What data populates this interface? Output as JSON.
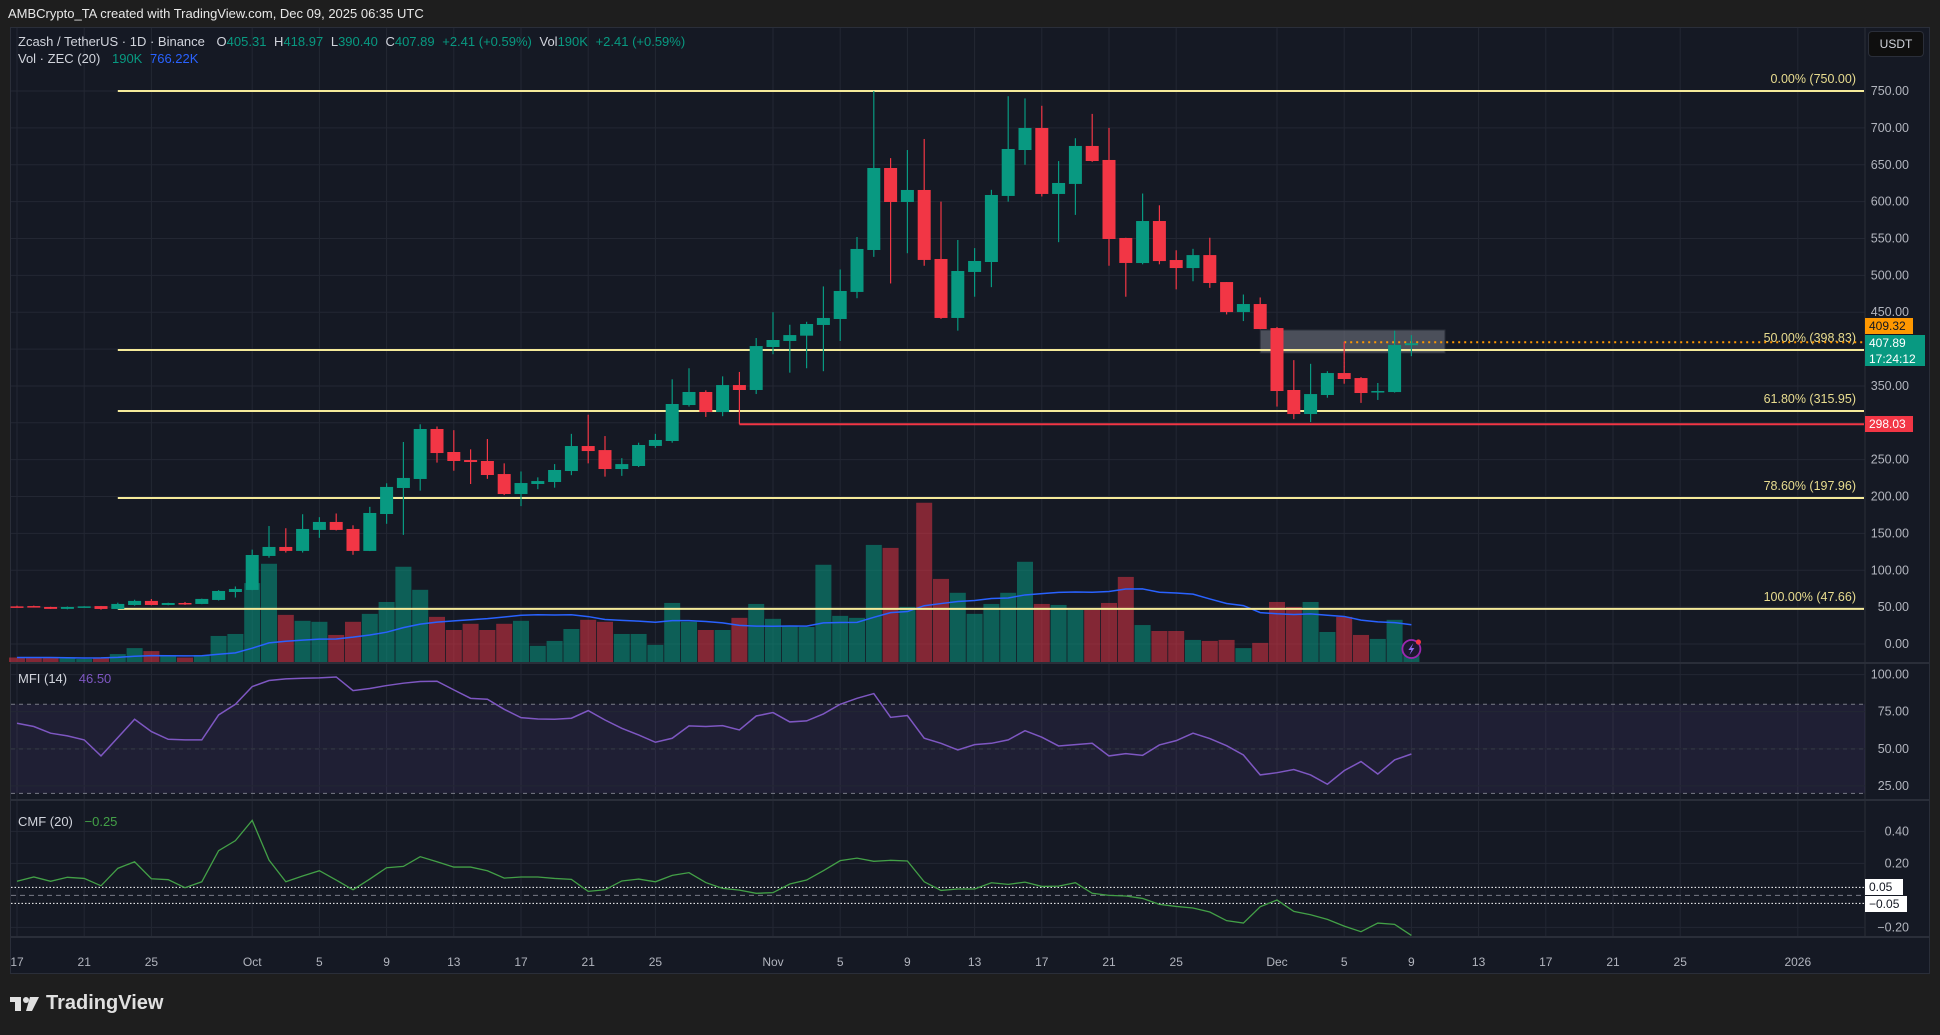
{
  "header": {
    "attribution": "AMBCrypto_TA created with TradingView.com, Dec 09, 2025 06:35 UTC"
  },
  "legend": {
    "symbol": "Zcash / TetherUS · 1D · Binance",
    "o_label": "O",
    "o": "405.31",
    "h_label": "H",
    "h": "418.97",
    "l_label": "L",
    "l": "390.40",
    "c_label": "C",
    "c": "407.89",
    "change": "+2.41 (+0.59%)",
    "vol_label": "Vol",
    "vol": "190K",
    "vol_change": "+2.41 (+0.59%)"
  },
  "volume_legend": {
    "label": "Vol · ZEC (20)",
    "value": "190K",
    "ma": "766.22K"
  },
  "mfi_legend": {
    "label": "MFI (14)",
    "value": "46.50"
  },
  "cmf_legend": {
    "label": "CMF (20)",
    "value": "−0.25"
  },
  "currency_button": "USDT",
  "price_badges": {
    "alert": "409.32",
    "last": "407.89",
    "countdown": "17:24:12",
    "support": "298.03"
  },
  "cmf_badges": {
    "upper": "0.05",
    "lower": "−0.05"
  },
  "footer": {
    "brand": "TradingView"
  },
  "colors": {
    "up": "#089981",
    "down": "#f23645",
    "fib": "#f5ea9a",
    "support": "#f23645",
    "alert": "#ff9800",
    "vol_ma": "#2962ff",
    "mfi": "#7e57c2",
    "cmf": "#43a047",
    "background": "#151924"
  },
  "x_axis": {
    "xlim": [
      "2025-09-17",
      "2026-01-05"
    ],
    "ticks": [
      {
        "label": "17",
        "date": "2025-09-17"
      },
      {
        "label": "21",
        "date": "2025-09-21"
      },
      {
        "label": "25",
        "date": "2025-09-25"
      },
      {
        "label": "Oct",
        "date": "2025-10-01"
      },
      {
        "label": "5",
        "date": "2025-10-05"
      },
      {
        "label": "9",
        "date": "2025-10-09"
      },
      {
        "label": "13",
        "date": "2025-10-13"
      },
      {
        "label": "17",
        "date": "2025-10-17"
      },
      {
        "label": "21",
        "date": "2025-10-21"
      },
      {
        "label": "25",
        "date": "2025-10-25"
      },
      {
        "label": "Nov",
        "date": "2025-11-01"
      },
      {
        "label": "5",
        "date": "2025-11-05"
      },
      {
        "label": "9",
        "date": "2025-11-09"
      },
      {
        "label": "13",
        "date": "2025-11-13"
      },
      {
        "label": "17",
        "date": "2025-11-17"
      },
      {
        "label": "21",
        "date": "2025-11-21"
      },
      {
        "label": "25",
        "date": "2025-11-25"
      },
      {
        "label": "Dec",
        "date": "2025-12-01"
      },
      {
        "label": "5",
        "date": "2025-12-05"
      },
      {
        "label": "9",
        "date": "2025-12-09"
      },
      {
        "label": "13",
        "date": "2025-12-13"
      },
      {
        "label": "17",
        "date": "2025-12-17"
      },
      {
        "label": "21",
        "date": "2025-12-21"
      },
      {
        "label": "25",
        "date": "2025-12-25"
      },
      {
        "label": "2026",
        "date": "2026-01-01"
      }
    ]
  },
  "chart_data": [
    {
      "type": "candlestick",
      "title": "Zcash / TetherUS · 1D · Binance",
      "ylim": [
        -25.8,
        835.5
      ],
      "yticks": [
        0,
        50,
        100,
        150,
        200,
        250,
        300,
        350,
        400,
        450,
        500,
        550,
        600,
        650,
        700,
        750
      ],
      "ytick_labels": [
        "0.00",
        "50.00",
        "100.00",
        "150.00",
        "200.00",
        "250.00",
        "300.00",
        "350.00",
        "400.00",
        "450.00",
        "500.00",
        "550.00",
        "600.00",
        "650.00",
        "700.00",
        "750.00"
      ],
      "hidden_ytick_labels": [
        "300.00",
        "400.00"
      ],
      "dates": [
        "2025-09-17",
        "2025-09-18",
        "2025-09-19",
        "2025-09-20",
        "2025-09-21",
        "2025-09-22",
        "2025-09-23",
        "2025-09-24",
        "2025-09-25",
        "2025-09-26",
        "2025-09-27",
        "2025-09-28",
        "2025-09-29",
        "2025-09-30",
        "2025-10-01",
        "2025-10-02",
        "2025-10-03",
        "2025-10-04",
        "2025-10-05",
        "2025-10-06",
        "2025-10-07",
        "2025-10-08",
        "2025-10-09",
        "2025-10-10",
        "2025-10-11",
        "2025-10-12",
        "2025-10-13",
        "2025-10-14",
        "2025-10-15",
        "2025-10-16",
        "2025-10-17",
        "2025-10-18",
        "2025-10-19",
        "2025-10-20",
        "2025-10-21",
        "2025-10-22",
        "2025-10-23",
        "2025-10-24",
        "2025-10-25",
        "2025-10-26",
        "2025-10-27",
        "2025-10-28",
        "2025-10-29",
        "2025-10-30",
        "2025-10-31",
        "2025-11-01",
        "2025-11-02",
        "2025-11-03",
        "2025-11-04",
        "2025-11-05",
        "2025-11-06",
        "2025-11-07",
        "2025-11-08",
        "2025-11-09",
        "2025-11-10",
        "2025-11-11",
        "2025-11-12",
        "2025-11-13",
        "2025-11-14",
        "2025-11-15",
        "2025-11-16",
        "2025-11-17",
        "2025-11-18",
        "2025-11-19",
        "2025-11-20",
        "2025-11-21",
        "2025-11-22",
        "2025-11-23",
        "2025-11-24",
        "2025-11-25",
        "2025-11-26",
        "2025-11-27",
        "2025-11-28",
        "2025-11-29",
        "2025-11-30",
        "2025-12-01",
        "2025-12-02",
        "2025-12-03",
        "2025-12-04",
        "2025-12-05",
        "2025-12-06",
        "2025-12-07",
        "2025-12-08",
        "2025-12-09"
      ],
      "ohlc": [
        [
          51,
          52,
          49.5,
          50.4
        ],
        [
          51.4,
          52,
          50,
          50.2
        ],
        [
          50.2,
          50.5,
          47.5,
          47.6
        ],
        [
          47.6,
          50.8,
          47,
          50.2
        ],
        [
          50.6,
          51.2,
          50.2,
          51
        ],
        [
          51.4,
          51.6,
          46.5,
          47.5
        ],
        [
          47.5,
          56,
          47,
          54.3
        ],
        [
          52.9,
          60,
          52,
          58.4
        ],
        [
          58.4,
          61,
          52.5,
          52.9
        ],
        [
          52.9,
          56,
          52.5,
          55.6
        ],
        [
          55.6,
          57,
          53,
          54.3
        ],
        [
          54.3,
          61.5,
          54,
          61.1
        ],
        [
          59.7,
          73,
          59,
          71.9
        ],
        [
          70.5,
          78,
          63,
          74.6
        ],
        [
          73.3,
          128,
          73,
          120.7
        ],
        [
          119.4,
          160,
          117,
          131.6
        ],
        [
          131.6,
          157,
          124,
          126.2
        ],
        [
          126.2,
          176,
          124,
          156
        ],
        [
          154.7,
          172,
          144,
          165.5
        ],
        [
          165.5,
          177,
          154,
          154.7
        ],
        [
          156,
          161,
          121,
          126.2
        ],
        [
          126.2,
          186,
          126,
          177.7
        ],
        [
          176.3,
          218,
          163,
          213
        ],
        [
          211.6,
          274,
          148,
          225.2
        ],
        [
          223.8,
          298,
          208,
          291.6
        ],
        [
          291.6,
          295,
          246,
          259
        ],
        [
          260.4,
          290,
          235,
          248.2
        ],
        [
          249.5,
          264,
          217,
          246.8
        ],
        [
          248.2,
          278,
          224,
          229.2
        ],
        [
          230.5,
          245,
          202,
          203.4
        ],
        [
          203.4,
          234,
          187,
          218.3
        ],
        [
          217,
          226,
          210,
          221
        ],
        [
          219.7,
          244,
          212,
          236
        ],
        [
          234.6,
          285,
          229,
          268.5
        ],
        [
          268.5,
          311,
          245,
          261.7
        ],
        [
          263,
          282,
          227,
          237.3
        ],
        [
          237.3,
          252,
          228,
          244
        ],
        [
          241.4,
          273,
          240,
          269.9
        ],
        [
          268.6,
          285,
          266,
          276.7
        ],
        [
          275.3,
          359,
          273,
          325.5
        ],
        [
          324.1,
          374,
          322,
          341.8
        ],
        [
          341.8,
          344,
          308,
          314.6
        ],
        [
          314.6,
          363,
          309,
          351.2
        ],
        [
          351.2,
          369,
          298.03,
          344.5
        ],
        [
          344.5,
          415,
          339,
          404.1
        ],
        [
          402.8,
          450,
          393,
          412.3
        ],
        [
          411,
          433,
          368,
          419
        ],
        [
          418.2,
          437,
          374,
          434
        ],
        [
          432.7,
          485,
          370,
          442.2
        ],
        [
          440.8,
          508,
          411,
          478.8
        ],
        [
          477.5,
          552,
          469,
          535.8
        ],
        [
          534.4,
          750,
          525,
          645.6
        ],
        [
          645.6,
          659,
          489,
          599.5
        ],
        [
          599.5,
          670,
          530,
          615.8
        ],
        [
          615.8,
          685,
          513,
          520.9
        ],
        [
          522.2,
          600,
          441,
          442.2
        ],
        [
          442.2,
          548,
          425,
          505.9
        ],
        [
          504.6,
          537,
          471,
          519.5
        ],
        [
          518.1,
          616,
          484,
          609
        ],
        [
          607.7,
          743,
          600,
          671.4
        ],
        [
          670,
          740,
          650,
          699.9
        ],
        [
          699.9,
          730,
          607,
          610.4
        ],
        [
          610.4,
          655,
          545,
          625.3
        ],
        [
          624,
          686,
          582,
          675.5
        ],
        [
          675.5,
          719,
          654,
          655.1
        ],
        [
          656.5,
          700,
          513,
          549.3
        ],
        [
          550.7,
          551,
          471,
          516.8
        ],
        [
          516.7,
          611,
          515,
          573.7
        ],
        [
          573.7,
          595,
          515,
          519.4
        ],
        [
          520.8,
          534,
          481,
          509.9
        ],
        [
          509.9,
          536,
          492,
          527.5
        ],
        [
          527.5,
          551,
          483,
          489.6
        ],
        [
          490.9,
          491,
          447,
          450.2
        ],
        [
          450.2,
          474,
          438,
          461.1
        ],
        [
          461.1,
          470,
          427,
          427.2
        ],
        [
          428.5,
          430,
          322,
          343.1
        ],
        [
          344.5,
          385,
          305,
          311.9
        ],
        [
          311.9,
          380,
          301,
          339
        ],
        [
          337.7,
          370,
          334,
          367.5
        ],
        [
          367.5,
          410,
          353,
          359.4
        ],
        [
          360.7,
          362,
          327,
          340.4
        ],
        [
          343,
          354,
          331,
          343.1
        ],
        [
          341.7,
          425,
          341,
          405.5
        ],
        [
          405.31,
          418.97,
          390.4,
          407.89
        ]
      ],
      "fib_levels": [
        {
          "label": "0.00% (750.00)",
          "value": 750,
          "start": "2025-09-23"
        },
        {
          "label": "50.00% (398.83)",
          "value": 398.83,
          "start": "2025-09-23"
        },
        {
          "label": "61.80% (315.95)",
          "value": 315.95,
          "start": "2025-09-23"
        },
        {
          "label": "78.60% (197.96)",
          "value": 197.96,
          "start": "2025-09-23"
        },
        {
          "label": "100.00% (47.66)",
          "value": 47.66,
          "start": "2025-09-23"
        }
      ],
      "support_line": {
        "value": 298.03,
        "start": "2025-10-30"
      },
      "alert_line": {
        "value": 409.32,
        "start": "2025-12-05"
      },
      "zone_box": {
        "start": "2025-11-30",
        "end": "2025-12-11",
        "low": 394.7,
        "high": 425.9
      }
    },
    {
      "type": "bar",
      "series_label": "Vol · ZEC (20)",
      "unit": "K",
      "ma_period": 20,
      "ylim": [
        0,
        12800
      ],
      "values": [
        90,
        90,
        90,
        75,
        60,
        90,
        160,
        280,
        220,
        115,
        90,
        140,
        525,
        565,
        1590,
        1980,
        950,
        830,
        810,
        545,
        810,
        970,
        1210,
        1920,
        1455,
        910,
        645,
        770,
        645,
        770,
        830,
        325,
        425,
        665,
        850,
        810,
        565,
        565,
        345,
        1190,
        810,
        645,
        645,
        890,
        1170,
        870,
        725,
        705,
        1960,
        930,
        890,
        2360,
        2300,
        1110,
        3210,
        1675,
        1395,
        970,
        1170,
        1395,
        2020,
        1170,
        1150,
        1050,
        1050,
        1190,
        1715,
        745,
        625,
        625,
        445,
        425,
        445,
        280,
        385,
        1210,
        1110,
        1210,
        605,
        910,
        545,
        465,
        850,
        190
      ]
    },
    {
      "type": "line",
      "series_label": "MFI (14)",
      "ylim": [
        15.5,
        107.8
      ],
      "yticks": [
        25,
        50,
        75,
        100
      ],
      "ytick_labels": [
        "25.00",
        "50.00",
        "75.00",
        "100.00"
      ],
      "bands": [
        80,
        50,
        20
      ],
      "values": [
        67.2,
        65,
        60.5,
        58.7,
        56,
        45.2,
        57.5,
        69.9,
        61.6,
        56.4,
        56,
        56,
        72.8,
        80,
        91.9,
        96,
        97.1,
        97.5,
        97.8,
        98.4,
        89.2,
        90.6,
        92.6,
        94.2,
        95.3,
        95.5,
        89.7,
        84,
        83.4,
        76.6,
        71,
        70.1,
        69.9,
        70.6,
        75.7,
        69.4,
        63.8,
        59.3,
        54.4,
        57.1,
        65.4,
        65,
        65.6,
        62.7,
        72.1,
        74.4,
        68.1,
        68.8,
        73.5,
        80,
        84,
        87.2,
        71.2,
        72.4,
        57.1,
        53.7,
        49.2,
        52.8,
        53.7,
        56,
        62.2,
        57.8,
        51.9,
        52.8,
        53.7,
        45.2,
        46.7,
        45.6,
        52.6,
        55.5,
        60.5,
        56.9,
        52.1,
        45.8,
        32.4,
        33.9,
        36,
        32.4,
        26.1,
        35.3,
        41.4,
        33,
        42.5,
        46.5
      ]
    },
    {
      "type": "line",
      "series_label": "CMF (20)",
      "ylim": [
        -0.26,
        0.596
      ],
      "yticks": [
        0.4,
        0.2,
        -0.2
      ],
      "ytick_labels": [
        "0.40",
        "0.20",
        "−0.20"
      ],
      "bands": [
        0.05,
        0,
        -0.05
      ],
      "values": [
        0.088,
        0.115,
        0.088,
        0.113,
        0.106,
        0.06,
        0.169,
        0.21,
        0.104,
        0.098,
        0.048,
        0.085,
        0.279,
        0.342,
        0.469,
        0.221,
        0.085,
        0.121,
        0.154,
        0.096,
        0.035,
        0.102,
        0.173,
        0.181,
        0.242,
        0.21,
        0.177,
        0.177,
        0.154,
        0.108,
        0.115,
        0.115,
        0.106,
        0.1,
        0.025,
        0.035,
        0.09,
        0.102,
        0.085,
        0.125,
        0.142,
        0.08,
        0.044,
        0.033,
        0.013,
        0.017,
        0.071,
        0.096,
        0.154,
        0.217,
        0.233,
        0.213,
        0.219,
        0.215,
        0.085,
        0.031,
        0.04,
        0.04,
        0.079,
        0.069,
        0.083,
        0.056,
        0.058,
        0.079,
        0.013,
        0,
        -0.004,
        -0.019,
        -0.056,
        -0.069,
        -0.079,
        -0.104,
        -0.158,
        -0.173,
        -0.071,
        -0.029,
        -0.1,
        -0.121,
        -0.15,
        -0.192,
        -0.227,
        -0.173,
        -0.181,
        -0.25
      ]
    }
  ]
}
